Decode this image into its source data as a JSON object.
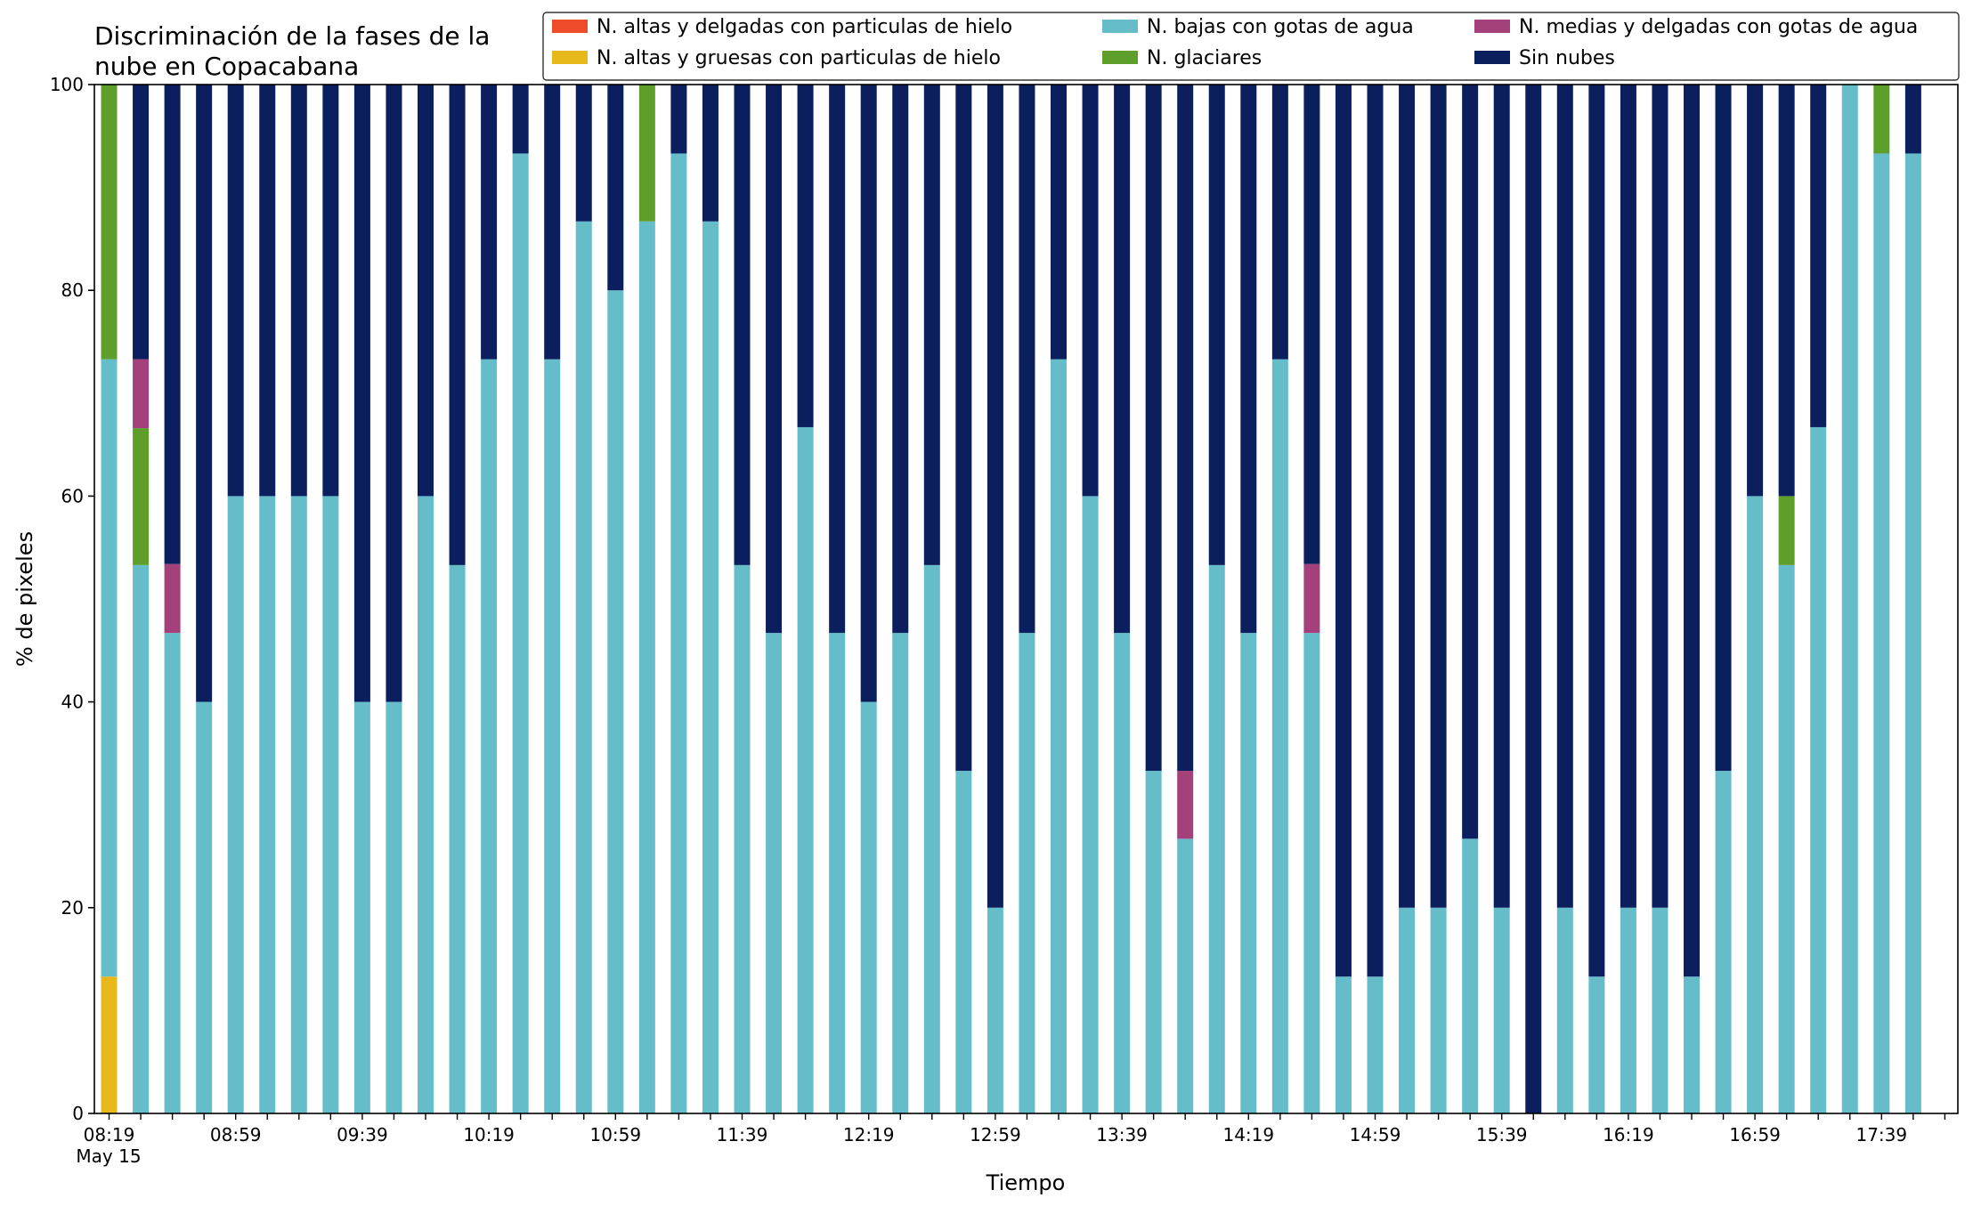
{
  "chart_data": {
    "type": "bar",
    "stacked": true,
    "title": [
      "Discriminación de la fases de la",
      "nube en Copacabana"
    ],
    "xlabel": "Tiempo",
    "ylabel": "% de pixeles",
    "ylim": [
      0,
      100
    ],
    "y_ticks": [
      0,
      20,
      40,
      60,
      80,
      100
    ],
    "x_tick_labels": [
      "08:19",
      "08:59",
      "09:39",
      "10:19",
      "10:59",
      "11:39",
      "12:19",
      "12:59",
      "13:39",
      "14:19",
      "14:59",
      "15:39",
      "16:19",
      "16:59",
      "17:39"
    ],
    "x_tick_sublabel": "May 15",
    "grid": false,
    "legend_position": "top-right",
    "legend_columns": 3,
    "series": [
      {
        "name": "N. altas y delgadas con particulas de hielo",
        "color": "#EE4B2B",
        "values": [
          0,
          0,
          0,
          0,
          0,
          0,
          0,
          0,
          0,
          0,
          0,
          0,
          0,
          0,
          0,
          0,
          0,
          0,
          0,
          0,
          0,
          0,
          0,
          0,
          0,
          0,
          0,
          0,
          0,
          0,
          0,
          0,
          0,
          0,
          0,
          0,
          0,
          0,
          0,
          0,
          0,
          0,
          0,
          0,
          0,
          0,
          0,
          0,
          0,
          0,
          0,
          0,
          0,
          0,
          0,
          0,
          0,
          0,
          0,
          0
        ]
      },
      {
        "name": "N. altas y gruesas con particulas de hielo",
        "color": "#E6B81A",
        "values": [
          13.3,
          0,
          0,
          0,
          0,
          0,
          0,
          0,
          0,
          0,
          0,
          0,
          0,
          0,
          0,
          0,
          0,
          0,
          0,
          0,
          0,
          0,
          0,
          0,
          0,
          0,
          0,
          0,
          0,
          0,
          0,
          0,
          0,
          0,
          0,
          0,
          0,
          0,
          0,
          0,
          0,
          0,
          0,
          0,
          0,
          0,
          0,
          0,
          0,
          0,
          0,
          0,
          0,
          0,
          0,
          0,
          0,
          0,
          0,
          0
        ]
      },
      {
        "name": "N. bajas con gotas de agua",
        "color": "#66BDCA",
        "values": [
          60,
          53.3,
          46.7,
          40,
          60,
          60,
          60,
          60,
          40,
          40,
          60,
          53.3,
          73.3,
          93.3,
          73.3,
          86.7,
          80,
          86.7,
          93.3,
          86.7,
          53.3,
          46.7,
          66.7,
          46.7,
          40,
          46.7,
          53.3,
          33.3,
          20,
          46.7,
          73.3,
          60,
          46.7,
          33.3,
          26.7,
          53.3,
          46.7,
          73.3,
          46.7,
          13.3,
          13.3,
          20,
          20,
          26.7,
          20,
          0,
          20,
          13.3,
          20,
          20,
          13.3,
          33.3,
          60,
          53.3,
          66.7,
          100,
          93.3,
          93.3,
          0,
          0
        ]
      },
      {
        "name": "N. glaciares",
        "color": "#5E9F2C",
        "values": [
          26.7,
          13.3,
          0,
          0,
          0,
          0,
          0,
          0,
          0,
          0,
          0,
          0,
          0,
          0,
          0,
          0,
          0,
          13.3,
          0,
          0,
          0,
          0,
          0,
          0,
          0,
          0,
          0,
          0,
          0,
          0,
          0,
          0,
          0,
          0,
          0,
          0,
          0,
          0,
          0,
          0,
          0,
          0,
          0,
          0,
          0,
          0,
          0,
          0,
          0,
          0,
          0,
          0,
          0,
          6.7,
          0,
          0,
          6.7,
          0,
          0,
          0
        ]
      },
      {
        "name": "N. medias y delgadas con gotas de agua",
        "color": "#A4417A",
        "values": [
          0,
          6.7,
          6.7,
          0,
          0,
          0,
          0,
          0,
          0,
          0,
          0,
          0,
          0,
          0,
          0,
          0,
          0,
          0,
          0,
          0,
          0,
          0,
          0,
          0,
          0,
          0,
          0,
          0,
          0,
          0,
          0,
          0,
          0,
          0,
          6.6,
          0,
          0,
          0,
          6.7,
          0,
          0,
          0,
          0,
          0,
          0,
          0,
          0,
          0,
          0,
          0,
          0,
          0,
          0,
          0,
          0,
          0,
          0,
          0,
          0,
          0
        ]
      },
      {
        "name": "Sin nubes",
        "color": "#0B1F5F",
        "values": [
          0,
          26.7,
          46.6,
          60,
          40,
          40,
          40,
          40,
          60,
          60,
          40,
          46.7,
          26.7,
          6.7,
          26.7,
          13.3,
          20,
          0,
          6.7,
          13.3,
          46.7,
          53.3,
          33.3,
          53.3,
          60,
          53.3,
          46.7,
          66.7,
          80,
          53.3,
          26.7,
          40,
          53.3,
          66.7,
          66.7,
          46.7,
          53.3,
          26.7,
          46.6,
          86.7,
          86.7,
          80,
          80,
          73.3,
          80,
          100,
          80,
          86.7,
          80,
          80,
          86.7,
          66.7,
          40,
          40,
          33.3,
          0,
          0,
          6.7,
          0,
          0
        ]
      }
    ],
    "n_bars_drawn": 58
  }
}
